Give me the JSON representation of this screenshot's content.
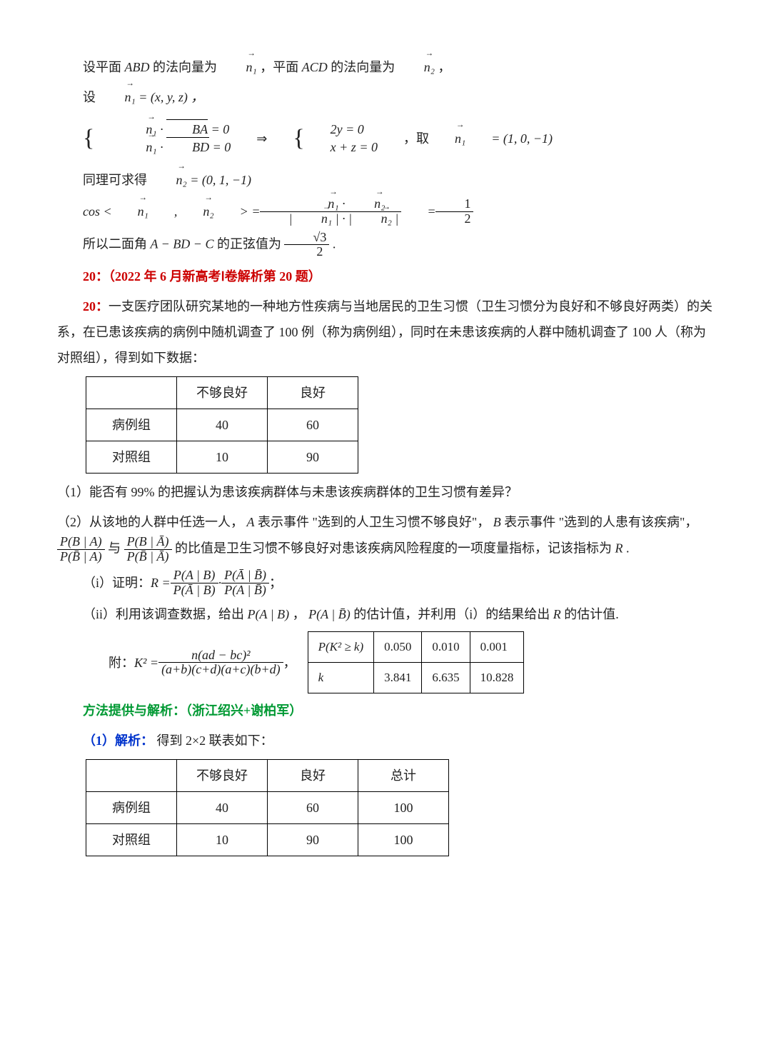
{
  "p1_a": "设平面 ",
  "p1_b": " 的法向量为 ",
  "p1_c": " ，平面 ",
  "p1_d": " 的法向量为 ",
  "p1_e": " ，",
  "abd": "ABD",
  "acd": "ACD",
  "n1": "n₁",
  "n2": "n₂",
  "p2_a": "设 ",
  "p2_b": " = (x, y, z) ，",
  "p3_sys1": "n₁ · BA = 0",
  "p3_sys2": "n₁ · BD = 0",
  "p3_imp": " ⇒ ",
  "p3_sys3": "2y = 0",
  "p3_sys4": "x + z = 0",
  "p3_take": " ，取 ",
  "p3_val": " = (1, 0, −1)",
  "p4_a": "同理可求得 ",
  "p4_b": " = (0, 1, −1)",
  "p5_a": "cos < ",
  "p5_b": " , ",
  "p5_c": " > = ",
  "p5_num": "n₁ · n₂",
  "p5_den": "| n₁ | · | n₂ |",
  "p5_eq": " = ",
  "p5_half_num": "1",
  "p5_half_den": "2",
  "p6_a": "所以二面角 ",
  "p6_b": "A − BD − C",
  "p6_c": " 的正弦值为 ",
  "p6_num": "√3",
  "p6_den": "2",
  "p6_d": " .",
  "h20a": "20：（2022 年 6 月新高考Ⅰ卷解析第 20 题）",
  "h20b": "20：",
  "q20_a": "一支医疗团队研究某地的一种地方性疾病与当地居民的卫生习惯（卫生习惯分为良好和不够良好两类）的关系，在已患该疾病的病例中随机调查了 100 例（称为病例组），同时在未患该疾病的人群中随机调查了 100 人（称为对照组），得到如下数据：",
  "table1": {
    "cols": [
      "",
      "不够良好",
      "良好"
    ],
    "rows": [
      [
        "病例组",
        "40",
        "60"
      ],
      [
        "对照组",
        "10",
        "90"
      ]
    ]
  },
  "q1": "（1）能否有 99% 的把握认为患该疾病群体与未患该疾病群体的卫生习惯有差异？",
  "q2a": "（2）从该地的人群中任选一人，",
  "q2b_A": "A",
  "q2b": " 表示事件 \"选到的人卫生习惯不够良好\"，",
  "q2c_B": "B",
  "q2c": " 表示事件 \"选到的人患有该疾病\"，",
  "q2_frac1_num": "P(B | A)",
  "q2_frac1_den": "P(B̄ | A)",
  "q2_yu": " 与 ",
  "q2_frac2_num": "P(B | Ā)",
  "q2_frac2_den": "P(B̄ | Ā)",
  "q2_d": " 的比值是卫生习惯不够良好对患该疾病风险程度的一项度量指标，记该指标为 ",
  "q2_R": "R",
  "q2_e": " .",
  "qi_a": "（i）证明：",
  "qi_R": "R = ",
  "qi_f1_num": "P(A | B)",
  "qi_f1_den": "P(Ā | B)",
  "qi_dot": " · ",
  "qi_f2_num": "P(Ā | B̄)",
  "qi_f2_den": "P(A | B̄)",
  "qi_semi": "；",
  "qii_a": "（ii）利用该调查数据，给出 ",
  "qii_p1": "P(A | B)",
  "qii_comma": "，",
  "qii_p2": "P(A | B̄)",
  "qii_b": " 的估计值，并利用（i）的结果给出 ",
  "qii_R": "R",
  "qii_c": " 的估计值.",
  "app_a": "附：",
  "app_K": "K² = ",
  "app_num": "n(ad − bc)²",
  "app_den": "(a+b)(c+d)(a+c)(b+d)",
  "app_comma": "，",
  "ktable": {
    "r1": [
      "P(K² ≥ k)",
      "0.050",
      "0.010",
      "0.001"
    ],
    "r2": [
      "k",
      "3.841",
      "6.635",
      "10.828"
    ]
  },
  "method": "方法提供与解析：（浙江绍兴+谢柏军）",
  "sol1_a": "（1）解析：",
  "sol1_b": "得到 2×2 联表如下：",
  "table2": {
    "cols": [
      "",
      "不够良好",
      "良好",
      "总计"
    ],
    "rows": [
      [
        "病例组",
        "40",
        "60",
        "100"
      ],
      [
        "对照组",
        "10",
        "90",
        "100"
      ]
    ]
  }
}
